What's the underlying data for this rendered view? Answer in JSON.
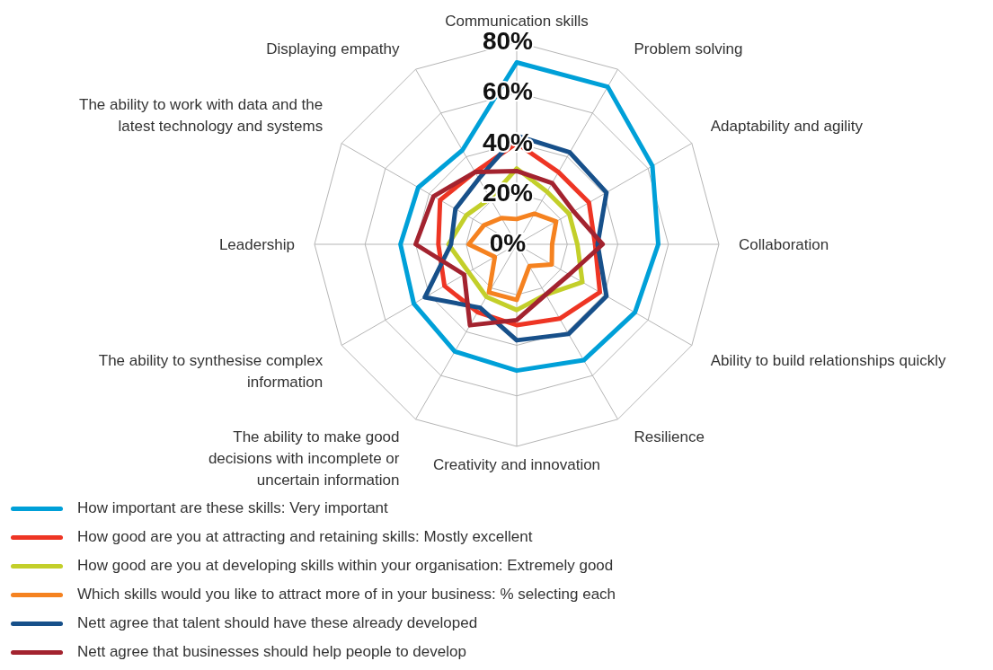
{
  "chart_data": {
    "type": "radar",
    "categories": [
      "Communication skills",
      "Problem solving",
      "Adaptability and agility",
      "Collaboration",
      "Ability to build relationships quickly",
      "Resilience",
      "Creativity and innovation",
      "The ability to make good decisions with incomplete or uncertain information",
      "The ability to synthesise complex information",
      "Leadership",
      "The ability to work with data and the latest technology and systems",
      "Displaying empathy"
    ],
    "series": [
      {
        "name": "How important are these skills: Very important",
        "color": "#00a0d8",
        "values": [
          72,
          72,
          62,
          56,
          54,
          53,
          50,
          49,
          47,
          46,
          45,
          43
        ]
      },
      {
        "name": "How good are you at attracting and retaining skills: Mostly excellent",
        "color": "#ee3524",
        "values": [
          40,
          33,
          33,
          31,
          38,
          34,
          32,
          31,
          33,
          31,
          35,
          33
        ]
      },
      {
        "name": "How good are you at developing skills within your organisation: Extremely good",
        "color": "#c3cf2a",
        "values": [
          30,
          24,
          24,
          24,
          30,
          23,
          26,
          24,
          22,
          27,
          23,
          21
        ]
      },
      {
        "name": "Which skills would you like to attract more of in your business: % selecting each",
        "color": "#f58220",
        "values": [
          10,
          14,
          18,
          14,
          16,
          10,
          22,
          22,
          10,
          19,
          15,
          12
        ]
      },
      {
        "name": "Nett agree that talent should have these already developed",
        "color": "#17508a",
        "values": [
          43,
          42,
          41,
          32,
          41,
          41,
          38,
          29,
          42,
          26,
          28,
          30
        ]
      },
      {
        "name": "Nett agree that businesses should help people to develop",
        "color": "#a3232f",
        "values": [
          29,
          28,
          26,
          34,
          24,
          23,
          30,
          37,
          24,
          40,
          38,
          33
        ]
      }
    ],
    "ylim": [
      0,
      80
    ],
    "yticks": [
      {
        "value": 0,
        "label": "0%"
      },
      {
        "value": 20,
        "label": "20%"
      },
      {
        "value": 40,
        "label": "40%"
      },
      {
        "value": 60,
        "label": "60%"
      },
      {
        "value": 80,
        "label": "80%"
      }
    ],
    "grid": true,
    "legend": "bottom"
  }
}
